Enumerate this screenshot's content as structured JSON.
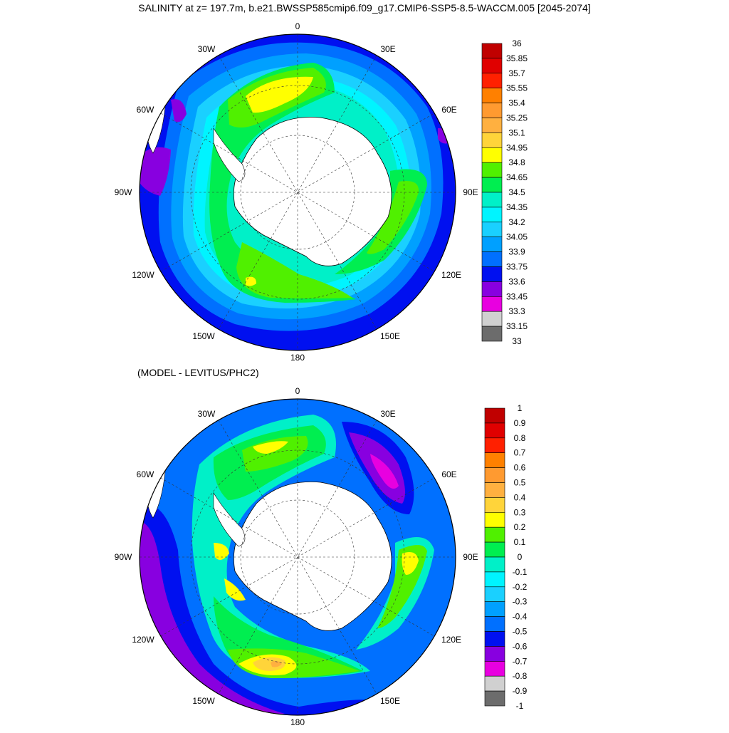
{
  "figure": {
    "title": "SALINITY at z= 197.7m, b.e21.BWSSP585cmip6.f09_g17.CMIP6-SSP5-8.5-WACCM.005 [2045-2074]",
    "subtitle": "(MODEL - LEVITUS/PHC2)"
  },
  "longitude_labels": [
    "0",
    "30E",
    "60E",
    "90E",
    "120E",
    "150E",
    "180",
    "150W",
    "120W",
    "90W",
    "60W",
    "30W"
  ],
  "colorbar_top": {
    "labels": [
      "36",
      "35.85",
      "35.7",
      "35.55",
      "35.4",
      "35.25",
      "35.1",
      "34.95",
      "34.8",
      "34.65",
      "34.5",
      "34.35",
      "34.2",
      "34.05",
      "33.9",
      "33.75",
      "33.6",
      "33.45",
      "33.3",
      "33.15",
      "33"
    ],
    "colors": [
      "#c00000",
      "#e00000",
      "#ff2000",
      "#ff8000",
      "#ff9a30",
      "#ffb040",
      "#ffd43a",
      "#ffff00",
      "#50f000",
      "#00ee50",
      "#00f0c8",
      "#00f4ff",
      "#1ad0ff",
      "#00a0ff",
      "#0070ff",
      "#0010f0",
      "#8800e0",
      "#e800e0",
      "#d0d0d0",
      "#6c6c6c"
    ]
  },
  "colorbar_bottom": {
    "labels": [
      "1",
      "0.9",
      "0.8",
      "0.7",
      "0.6",
      "0.5",
      "0.4",
      "0.3",
      "0.2",
      "0.1",
      "0",
      "-0.1",
      "-0.2",
      "-0.3",
      "-0.4",
      "-0.5",
      "-0.6",
      "-0.7",
      "-0.8",
      "-0.9",
      "-1"
    ],
    "colors": [
      "#c00000",
      "#e00000",
      "#ff2000",
      "#ff8000",
      "#ff9a30",
      "#ffb040",
      "#ffd43a",
      "#ffff00",
      "#50f000",
      "#00ee50",
      "#00f0c8",
      "#00f4ff",
      "#1ad0ff",
      "#00a0ff",
      "#0070ff",
      "#0010f0",
      "#8800e0",
      "#e800e0",
      "#d0d0d0",
      "#6c6c6c"
    ]
  }
}
